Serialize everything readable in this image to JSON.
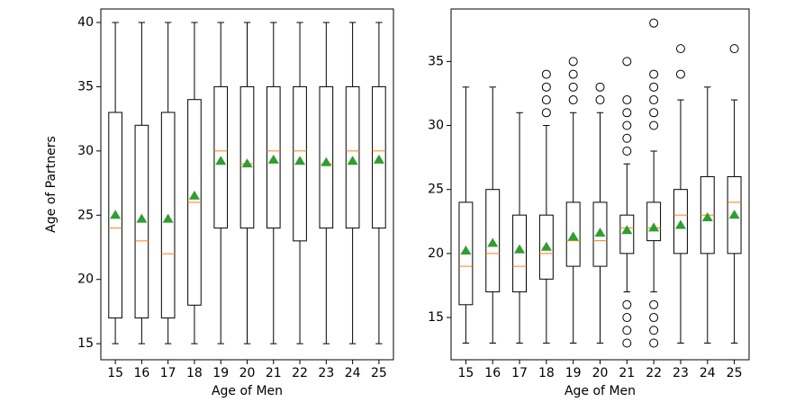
{
  "chart_data": [
    {
      "type": "box",
      "xlabel": "Age of Men",
      "ylabel": "Age of Partners",
      "categories": [
        15,
        16,
        17,
        18,
        19,
        20,
        21,
        22,
        23,
        24,
        25
      ],
      "ylim": [
        13.75,
        41.05
      ],
      "yticks": [
        15,
        20,
        25,
        30,
        35,
        40
      ],
      "median_color": "#ff7f0e",
      "mean_color": "#2ca02c",
      "boxes": [
        {
          "whislo": 15,
          "q1": 17,
          "med": 24,
          "q3": 33,
          "whishi": 40,
          "mean": 25.0,
          "fliers": []
        },
        {
          "whislo": 15,
          "q1": 17,
          "med": 23,
          "q3": 32,
          "whishi": 40,
          "mean": 24.7,
          "fliers": []
        },
        {
          "whislo": 15,
          "q1": 17,
          "med": 22,
          "q3": 33,
          "whishi": 40,
          "mean": 24.7,
          "fliers": []
        },
        {
          "whislo": 15,
          "q1": 18,
          "med": 26,
          "q3": 34,
          "whishi": 40,
          "mean": 26.5,
          "fliers": []
        },
        {
          "whislo": 15,
          "q1": 24,
          "med": 30,
          "q3": 35,
          "whishi": 40,
          "mean": 29.2,
          "fliers": []
        },
        {
          "whislo": 15,
          "q1": 24,
          "med": 29,
          "q3": 35,
          "whishi": 40,
          "mean": 29.0,
          "fliers": []
        },
        {
          "whislo": 15,
          "q1": 24,
          "med": 30,
          "q3": 35,
          "whishi": 40,
          "mean": 29.3,
          "fliers": []
        },
        {
          "whislo": 15,
          "q1": 23,
          "med": 30,
          "q3": 35,
          "whishi": 40,
          "mean": 29.2,
          "fliers": []
        },
        {
          "whislo": 15,
          "q1": 24,
          "med": 29,
          "q3": 35,
          "whishi": 40,
          "mean": 29.1,
          "fliers": []
        },
        {
          "whislo": 15,
          "q1": 24,
          "med": 30,
          "q3": 35,
          "whishi": 40,
          "mean": 29.2,
          "fliers": []
        },
        {
          "whislo": 15,
          "q1": 24,
          "med": 30,
          "q3": 35,
          "whishi": 40,
          "mean": 29.3,
          "fliers": []
        }
      ]
    },
    {
      "type": "box",
      "xlabel": "Age of Men",
      "categories": [
        15,
        16,
        17,
        18,
        19,
        20,
        21,
        22,
        23,
        24,
        25
      ],
      "ylim": [
        11.7,
        39.1
      ],
      "yticks": [
        15,
        20,
        25,
        30,
        35
      ],
      "median_color": "#ff7f0e",
      "mean_color": "#2ca02c",
      "boxes": [
        {
          "whislo": 13,
          "q1": 16,
          "med": 19,
          "q3": 24,
          "whishi": 33,
          "mean": 20.2,
          "fliers": []
        },
        {
          "whislo": 13,
          "q1": 17,
          "med": 20,
          "q3": 25,
          "whishi": 33,
          "mean": 20.8,
          "fliers": []
        },
        {
          "whislo": 13,
          "q1": 17,
          "med": 19,
          "q3": 23,
          "whishi": 31,
          "mean": 20.3,
          "fliers": []
        },
        {
          "whislo": 13,
          "q1": 18,
          "med": 20,
          "q3": 23,
          "whishi": 30,
          "mean": 20.5,
          "fliers": [
            31,
            32,
            33,
            34
          ]
        },
        {
          "whislo": 13,
          "q1": 19,
          "med": 21,
          "q3": 24,
          "whishi": 31,
          "mean": 21.3,
          "fliers": [
            32,
            33,
            34,
            35
          ]
        },
        {
          "whislo": 13,
          "q1": 19,
          "med": 21,
          "q3": 24,
          "whishi": 31,
          "mean": 21.6,
          "fliers": [
            32,
            33
          ]
        },
        {
          "whislo": 17,
          "q1": 20,
          "med": 22,
          "q3": 23,
          "whishi": 27,
          "mean": 21.8,
          "fliers": [
            13,
            14,
            15,
            16,
            28,
            29,
            30,
            31,
            32,
            35
          ]
        },
        {
          "whislo": 17,
          "q1": 21,
          "med": 22,
          "q3": 24,
          "whishi": 28,
          "mean": 22.0,
          "fliers": [
            13,
            14,
            15,
            16,
            30,
            31,
            32,
            33,
            34,
            38
          ]
        },
        {
          "whislo": 13,
          "q1": 20,
          "med": 23,
          "q3": 25,
          "whishi": 32,
          "mean": 22.2,
          "fliers": [
            34,
            36
          ]
        },
        {
          "whislo": 13,
          "q1": 20,
          "med": 23,
          "q3": 26,
          "whishi": 33,
          "mean": 22.8,
          "fliers": []
        },
        {
          "whislo": 13,
          "q1": 20,
          "med": 24,
          "q3": 26,
          "whishi": 32,
          "mean": 23.0,
          "fliers": [
            36
          ]
        }
      ]
    }
  ]
}
